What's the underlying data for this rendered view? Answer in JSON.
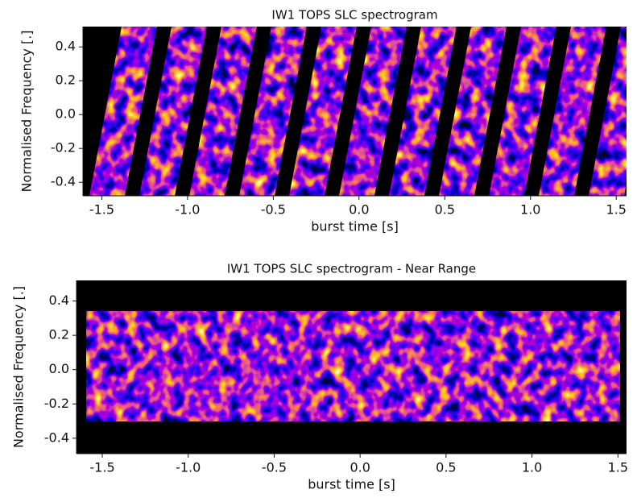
{
  "chart_data": [
    {
      "type": "heatmap",
      "title": "IW1 TOPS SLC spectrogram",
      "x_label": "burst time [s]",
      "y_label": "Normalised Frequency [.]",
      "xlim": [
        -1.61,
        1.56
      ],
      "ylim": [
        -0.48,
        0.52
      ],
      "xticks": [
        -1.5,
        {
          "value": -1.0,
          "label": "-1.0"
        },
        -0.5,
        {
          "value": 0.0,
          "label": "0.0"
        },
        0.5,
        {
          "value": 1.0,
          "label": "1.0"
        },
        1.5
      ],
      "yticks": [
        0.4,
        0.2,
        {
          "value": 0.0,
          "label": "0.0"
        },
        -0.2,
        -0.4
      ]
    },
    {
      "type": "heatmap",
      "title": "IW1 TOPS SLC spectrogram - Near Range",
      "x_label": "burst time [s]",
      "y_label": "Normalised Frequency [.]",
      "xlim": [
        -1.65,
        1.55
      ],
      "ylim": [
        -0.49,
        0.52
      ],
      "xticks": [
        -1.5,
        {
          "value": -1.0,
          "label": "-1.0"
        },
        -0.5,
        {
          "value": 0.0,
          "label": "0.0"
        },
        0.5,
        {
          "value": 1.0,
          "label": "1.0"
        },
        1.5
      ],
      "yticks": [
        0.4,
        0.2,
        {
          "value": 0.0,
          "label": "0.0"
        },
        -0.2,
        -0.4
      ]
    }
  ]
}
